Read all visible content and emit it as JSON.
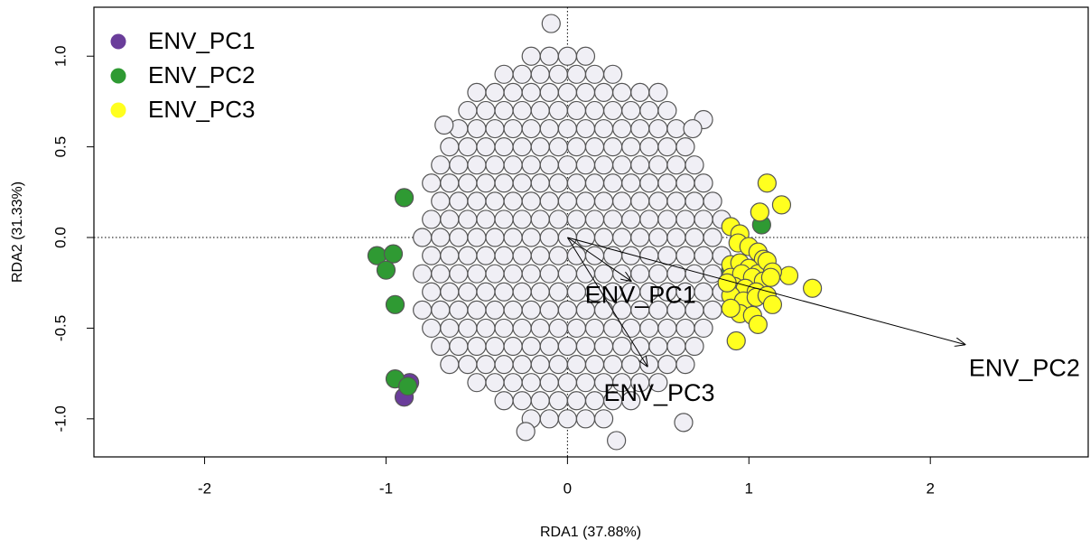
{
  "chart_data": {
    "type": "scatter",
    "xlabel": "RDA1 (37.88%)",
    "ylabel": "RDA2 (31.33%)",
    "xlim": [
      -2.61,
      2.87
    ],
    "ylim": [
      -1.21,
      1.27
    ],
    "xticks": [
      -2,
      -1,
      0,
      1,
      2
    ],
    "yticks": [
      {
        "value": -1,
        "label": "-1.0"
      },
      -0.5,
      {
        "value": 0,
        "label": "0.0"
      },
      0.5,
      {
        "value": 1,
        "label": "1.0"
      }
    ],
    "legend": "topleft",
    "series": [
      {
        "color": "#f0eff5",
        "x": [
          -0.2,
          -0.1,
          0,
          0.1,
          -0.35,
          -0.25,
          -0.15,
          -0.05,
          0.05,
          0.15,
          0.25,
          -0.5,
          -0.4,
          -0.3,
          -0.2,
          -0.1,
          0,
          0.1,
          0.2,
          0.3,
          0.4,
          0.5,
          -0.55,
          -0.45,
          -0.35,
          -0.25,
          -0.15,
          -0.05,
          0.05,
          0.15,
          0.25,
          0.35,
          0.45,
          0.55,
          -0.6,
          -0.5,
          -0.4,
          -0.3,
          -0.2,
          -0.1,
          0,
          0.1,
          0.2,
          0.3,
          0.4,
          0.5,
          0.6,
          -0.65,
          -0.55,
          -0.45,
          -0.35,
          -0.25,
          -0.15,
          -0.05,
          0.05,
          0.15,
          0.25,
          0.35,
          0.45,
          0.55,
          0.65,
          -0.7,
          -0.6,
          -0.5,
          -0.4,
          -0.3,
          -0.2,
          -0.1,
          0,
          0.1,
          0.2,
          0.3,
          0.4,
          0.5,
          0.6,
          0.7,
          -0.75,
          -0.65,
          -0.55,
          -0.45,
          -0.35,
          -0.25,
          -0.15,
          -0.05,
          0.05,
          0.15,
          0.25,
          0.35,
          0.45,
          0.55,
          0.65,
          0.75,
          -0.7,
          -0.6,
          -0.5,
          -0.4,
          -0.3,
          -0.2,
          -0.1,
          0,
          0.1,
          0.2,
          0.3,
          0.4,
          0.5,
          0.6,
          0.7,
          0.8,
          -0.75,
          -0.65,
          -0.55,
          -0.45,
          -0.35,
          -0.25,
          -0.15,
          -0.05,
          0.05,
          0.15,
          0.25,
          0.35,
          0.45,
          0.55,
          0.65,
          0.75,
          0.85,
          -0.8,
          -0.7,
          -0.6,
          -0.5,
          -0.4,
          -0.3,
          -0.2,
          -0.1,
          0,
          0.1,
          0.2,
          0.3,
          0.4,
          0.5,
          0.6,
          0.7,
          0.8,
          -0.75,
          -0.65,
          -0.55,
          -0.45,
          -0.35,
          -0.25,
          -0.15,
          -0.05,
          0.05,
          0.15,
          0.25,
          0.35,
          0.45,
          0.55,
          0.65,
          0.75,
          0.85,
          -0.8,
          -0.7,
          -0.6,
          -0.5,
          -0.4,
          -0.3,
          -0.2,
          -0.1,
          0,
          0.1,
          0.2,
          0.3,
          0.4,
          0.5,
          0.6,
          0.7,
          0.8,
          -0.75,
          -0.65,
          -0.55,
          -0.45,
          -0.35,
          -0.25,
          -0.15,
          -0.05,
          0.05,
          0.15,
          0.25,
          0.35,
          0.45,
          0.55,
          0.65,
          0.75,
          0.85,
          -0.8,
          -0.7,
          -0.6,
          -0.5,
          -0.4,
          -0.3,
          -0.2,
          -0.1,
          0,
          0.1,
          0.2,
          0.3,
          0.4,
          0.5,
          0.6,
          0.7,
          0.8,
          -0.75,
          -0.65,
          -0.55,
          -0.45,
          -0.35,
          -0.25,
          -0.15,
          -0.05,
          0.05,
          0.15,
          0.25,
          0.35,
          0.45,
          0.55,
          0.65,
          0.75,
          -0.7,
          -0.6,
          -0.5,
          -0.4,
          -0.3,
          -0.2,
          -0.1,
          0,
          0.1,
          0.2,
          0.3,
          0.4,
          0.5,
          0.6,
          0.7,
          -0.65,
          -0.55,
          -0.45,
          -0.35,
          -0.25,
          -0.15,
          -0.05,
          0.05,
          0.15,
          0.25,
          0.35,
          0.45,
          0.55,
          0.65,
          -0.5,
          -0.4,
          -0.3,
          -0.2,
          -0.1,
          0,
          0.1,
          0.2,
          0.3,
          0.4,
          0.5,
          -0.35,
          -0.25,
          -0.15,
          -0.05,
          0.05,
          0.15,
          0.25,
          0.35,
          -0.2,
          -0.1,
          0,
          0.1,
          0.2,
          -0.09,
          -0.68,
          0.75,
          0.69,
          -0.23,
          0.27,
          0.64
        ],
        "y": [
          1,
          1,
          1,
          1,
          0.9,
          0.9,
          0.9,
          0.9,
          0.9,
          0.9,
          0.9,
          0.8,
          0.8,
          0.8,
          0.8,
          0.8,
          0.8,
          0.8,
          0.8,
          0.8,
          0.8,
          0.8,
          0.7,
          0.7,
          0.7,
          0.7,
          0.7,
          0.7,
          0.7,
          0.7,
          0.7,
          0.7,
          0.7,
          0.7,
          0.6,
          0.6,
          0.6,
          0.6,
          0.6,
          0.6,
          0.6,
          0.6,
          0.6,
          0.6,
          0.6,
          0.6,
          0.6,
          0.5,
          0.5,
          0.5,
          0.5,
          0.5,
          0.5,
          0.5,
          0.5,
          0.5,
          0.5,
          0.5,
          0.5,
          0.5,
          0.5,
          0.4,
          0.4,
          0.4,
          0.4,
          0.4,
          0.4,
          0.4,
          0.4,
          0.4,
          0.4,
          0.4,
          0.4,
          0.4,
          0.4,
          0.4,
          0.3,
          0.3,
          0.3,
          0.3,
          0.3,
          0.3,
          0.3,
          0.3,
          0.3,
          0.3,
          0.3,
          0.3,
          0.3,
          0.3,
          0.3,
          0.3,
          0.2,
          0.2,
          0.2,
          0.2,
          0.2,
          0.2,
          0.2,
          0.2,
          0.2,
          0.2,
          0.2,
          0.2,
          0.2,
          0.2,
          0.2,
          0.2,
          0.1,
          0.1,
          0.1,
          0.1,
          0.1,
          0.1,
          0.1,
          0.1,
          0.1,
          0.1,
          0.1,
          0.1,
          0.1,
          0.1,
          0.1,
          0.1,
          0.1,
          0,
          0,
          0,
          0,
          0,
          0,
          0,
          0,
          0,
          0,
          0,
          0,
          0,
          0,
          0,
          0,
          0,
          -0.1,
          -0.1,
          -0.1,
          -0.1,
          -0.1,
          -0.1,
          -0.1,
          -0.1,
          -0.1,
          -0.1,
          -0.1,
          -0.1,
          -0.1,
          -0.1,
          -0.1,
          -0.1,
          -0.1,
          -0.2,
          -0.2,
          -0.2,
          -0.2,
          -0.2,
          -0.2,
          -0.2,
          -0.2,
          -0.2,
          -0.2,
          -0.2,
          -0.2,
          -0.2,
          -0.2,
          -0.2,
          -0.2,
          -0.2,
          -0.3,
          -0.3,
          -0.3,
          -0.3,
          -0.3,
          -0.3,
          -0.3,
          -0.3,
          -0.3,
          -0.3,
          -0.3,
          -0.3,
          -0.3,
          -0.3,
          -0.3,
          -0.3,
          -0.3,
          -0.4,
          -0.4,
          -0.4,
          -0.4,
          -0.4,
          -0.4,
          -0.4,
          -0.4,
          -0.4,
          -0.4,
          -0.4,
          -0.4,
          -0.4,
          -0.4,
          -0.4,
          -0.4,
          -0.4,
          -0.5,
          -0.5,
          -0.5,
          -0.5,
          -0.5,
          -0.5,
          -0.5,
          -0.5,
          -0.5,
          -0.5,
          -0.5,
          -0.5,
          -0.5,
          -0.5,
          -0.5,
          -0.5,
          -0.6,
          -0.6,
          -0.6,
          -0.6,
          -0.6,
          -0.6,
          -0.6,
          -0.6,
          -0.6,
          -0.6,
          -0.6,
          -0.6,
          -0.6,
          -0.6,
          -0.6,
          -0.7,
          -0.7,
          -0.7,
          -0.7,
          -0.7,
          -0.7,
          -0.7,
          -0.7,
          -0.7,
          -0.7,
          -0.7,
          -0.7,
          -0.7,
          -0.7,
          -0.8,
          -0.8,
          -0.8,
          -0.8,
          -0.8,
          -0.8,
          -0.8,
          -0.8,
          -0.8,
          -0.8,
          -0.8,
          -0.9,
          -0.9,
          -0.9,
          -0.9,
          -0.9,
          -0.9,
          -0.9,
          -0.9,
          -1,
          -1,
          -1,
          -1,
          -1,
          1.18,
          0.62,
          0.65,
          0.6,
          -1.07,
          -1.12,
          -1.02
        ]
      },
      {
        "name": "ENV_PC1",
        "color": "#6a3d9a",
        "x": [
          -0.9,
          -0.87
        ],
        "y": [
          -0.88,
          -0.8
        ]
      },
      {
        "name": "ENV_PC2",
        "color": "#2f9a33",
        "x": [
          -1.05,
          -0.96,
          -1.0,
          -0.9,
          -0.95,
          -0.95,
          -0.88,
          1.07,
          0.9
        ],
        "y": [
          -0.1,
          -0.09,
          -0.18,
          0.22,
          -0.37,
          -0.78,
          -0.82,
          0.07,
          -0.18
        ]
      },
      {
        "name": "ENV_PC3",
        "color": "#ffff1f",
        "x": [
          1.1,
          1.06,
          1.18,
          0.9,
          0.95,
          0.94,
          1.0,
          1.05,
          1.08,
          0.9,
          0.95,
          1.0,
          1.05,
          1.1,
          1.22,
          0.9,
          0.96,
          1.02,
          1.08,
          1.13,
          0.92,
          0.98,
          1.04,
          1.35,
          0.9,
          0.97,
          1.04,
          1.1,
          0.95,
          1.13,
          0.9,
          1.02,
          1.05,
          0.93,
          1.12,
          0.88
        ],
        "y": [
          0.3,
          0.14,
          0.18,
          0.06,
          0.02,
          -0.03,
          -0.05,
          -0.08,
          -0.12,
          -0.15,
          -0.14,
          -0.17,
          -0.2,
          -0.13,
          -0.21,
          -0.22,
          -0.2,
          -0.22,
          -0.24,
          -0.19,
          -0.27,
          -0.28,
          -0.3,
          -0.28,
          -0.32,
          -0.35,
          -0.33,
          -0.32,
          -0.42,
          -0.37,
          -0.39,
          -0.43,
          -0.48,
          -0.57,
          -0.22,
          -0.25
        ]
      }
    ],
    "arrows": [
      {
        "label": "ENV_PC1",
        "x": 0.35,
        "y": -0.24
      },
      {
        "label": "ENV_PC2",
        "x": 2.19,
        "y": -0.59
      },
      {
        "label": "ENV_PC3",
        "x": 0.44,
        "y": -0.71
      }
    ]
  }
}
